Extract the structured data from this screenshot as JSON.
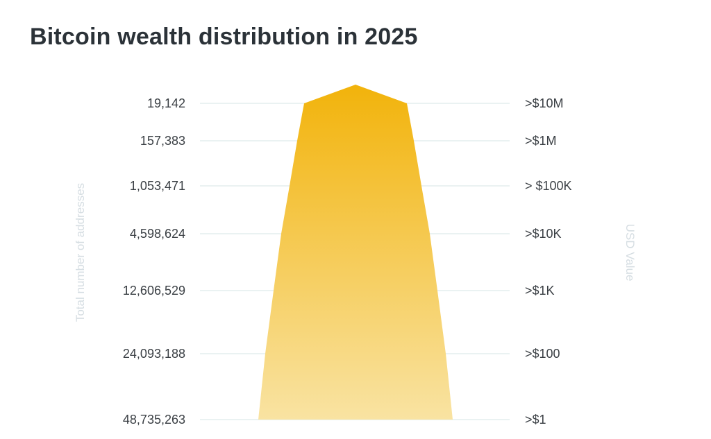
{
  "chart_data": {
    "type": "area",
    "title": "Bitcoin wealth distribution in 2025",
    "ylabel_left": "Total number of addresses",
    "ylabel_right": "USD Value",
    "levels": [
      {
        "addresses": "19,142",
        "usd": ">$10M"
      },
      {
        "addresses": "157,383",
        "usd": ">$1M"
      },
      {
        "addresses": "1,053,471",
        "usd": "> $100K"
      },
      {
        "addresses": "4,598,624",
        "usd": ">$10K"
      },
      {
        "addresses": "12,606,529",
        "usd": ">$1K"
      },
      {
        "addresses": "24,093,188",
        "usd": ">$100"
      },
      {
        "addresses": "48,735,263",
        "usd": ">$1"
      }
    ],
    "colors": {
      "top": "#f2b30b",
      "bottom": "#f9e3a2",
      "grid": "#d6e4e6",
      "label": "#3a3f44",
      "title": "#2b3238"
    }
  }
}
